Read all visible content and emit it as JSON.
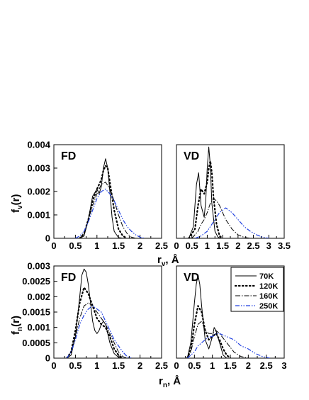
{
  "legend": [
    "70K",
    "120K",
    "160K",
    "250K"
  ],
  "colors": {
    "70K": "#000000",
    "120K": "#000000",
    "160K": "#000000",
    "250K": "#1f3fe0"
  },
  "labels": {
    "ylabel_top_main": "f",
    "ylabel_top_sub": "v",
    "ylabel_top_tail": "(r)",
    "ylabel_bot_main": "f",
    "ylabel_bot_sub": "n",
    "ylabel_bot_tail": "(r)",
    "xlabel_top_main": "r",
    "xlabel_top_sub": "v",
    "xlabel_top_tail": ", Å",
    "xlabel_bot_main": "r",
    "xlabel_bot_sub": "n",
    "xlabel_bot_tail": ", Å"
  },
  "chart_data": [
    {
      "type": "line",
      "title": "FD",
      "xlim": [
        0,
        2.5
      ],
      "ylim": [
        0,
        0.004
      ],
      "xticks": [
        "0",
        "0.5",
        "1",
        "1.5",
        "2",
        "2.5"
      ],
      "yticks": [
        "0",
        "0.001",
        "0.002",
        "0.003",
        "0.004"
      ],
      "series": [
        {
          "name": "70K",
          "x": [
            0.6,
            0.7,
            0.8,
            0.9,
            1.0,
            1.05,
            1.1,
            1.15,
            1.2,
            1.25,
            1.3,
            1.35,
            1.4,
            1.5,
            1.6,
            1.7
          ],
          "y": [
            0,
            0.0001,
            0.0008,
            0.0018,
            0.0021,
            0.0019,
            0.0022,
            0.003,
            0.0034,
            0.003,
            0.002,
            0.0009,
            0.0003,
            3e-05,
            0,
            0
          ]
        },
        {
          "name": "120K",
          "x": [
            0.6,
            0.7,
            0.8,
            0.9,
            1.0,
            1.1,
            1.15,
            1.2,
            1.25,
            1.3,
            1.4,
            1.5,
            1.6,
            1.7
          ],
          "y": [
            0,
            0.0002,
            0.0008,
            0.0016,
            0.0021,
            0.0025,
            0.0029,
            0.0031,
            0.003,
            0.0024,
            0.0012,
            0.0004,
            0.0001,
            0
          ]
        },
        {
          "name": "160K",
          "x": [
            0.6,
            0.7,
            0.8,
            0.9,
            1.0,
            1.1,
            1.2,
            1.3,
            1.4,
            1.5,
            1.6,
            1.7,
            1.8,
            1.9
          ],
          "y": [
            0,
            0.0002,
            0.0008,
            0.0014,
            0.0019,
            0.0023,
            0.0024,
            0.0021,
            0.0016,
            0.001,
            0.0005,
            0.0002,
            5e-05,
            0
          ]
        },
        {
          "name": "250K",
          "x": [
            0.5,
            0.6,
            0.7,
            0.8,
            0.9,
            1.0,
            1.1,
            1.2,
            1.3,
            1.4,
            1.5,
            1.6,
            1.7,
            1.8,
            1.9,
            2.0,
            2.1
          ],
          "y": [
            0,
            0.0001,
            0.0003,
            0.0007,
            0.0012,
            0.0017,
            0.002,
            0.0021,
            0.0019,
            0.0016,
            0.0012,
            0.0008,
            0.0005,
            0.0003,
            0.00015,
            5e-05,
            0
          ]
        }
      ]
    },
    {
      "type": "line",
      "title": "VD",
      "xlim": [
        0,
        3.5
      ],
      "ylim": [
        0,
        0.004
      ],
      "xticks": [
        "0",
        "0.5",
        "1",
        "1.5",
        "2",
        "2.5",
        "3",
        "3.5"
      ],
      "series": [
        {
          "name": "70K",
          "x": [
            0.4,
            0.55,
            0.65,
            0.72,
            0.8,
            0.9,
            0.95,
            1.0,
            1.05,
            1.1,
            1.15,
            1.25,
            1.35,
            1.45
          ],
          "y": [
            0,
            0.0005,
            0.0023,
            0.0028,
            0.0014,
            0.0009,
            0.0016,
            0.003,
            0.0039,
            0.0031,
            0.0015,
            0.0003,
            5e-05,
            0
          ]
        },
        {
          "name": "120K",
          "x": [
            0.4,
            0.6,
            0.7,
            0.8,
            0.9,
            1.0,
            1.05,
            1.1,
            1.15,
            1.2,
            1.3,
            1.4,
            1.5
          ],
          "y": [
            0,
            0.0004,
            0.0014,
            0.0021,
            0.0019,
            0.0024,
            0.003,
            0.0033,
            0.0028,
            0.0018,
            0.0006,
            0.0001,
            0
          ]
        },
        {
          "name": "160K",
          "x": [
            0.5,
            0.7,
            0.8,
            0.9,
            1.0,
            1.1,
            1.2,
            1.3,
            1.4,
            1.5,
            1.6,
            1.8,
            2.0,
            2.2,
            2.4
          ],
          "y": [
            0,
            0.0003,
            0.0006,
            0.0008,
            0.0011,
            0.0015,
            0.0017,
            0.0016,
            0.0014,
            0.0011,
            0.0008,
            0.0004,
            0.00015,
            4e-05,
            0
          ]
        },
        {
          "name": "250K",
          "x": [
            0.6,
            0.8,
            1.0,
            1.2,
            1.4,
            1.5,
            1.6,
            1.7,
            1.8,
            2.0,
            2.2,
            2.4,
            2.6,
            2.8,
            3.0
          ],
          "y": [
            0,
            0.0001,
            0.0003,
            0.0007,
            0.0011,
            0.0012,
            0.0013,
            0.0012,
            0.0011,
            0.0008,
            0.0005,
            0.0003,
            0.00015,
            5e-05,
            0
          ]
        }
      ]
    },
    {
      "type": "line",
      "title": "FD",
      "xlim": [
        0,
        2.5
      ],
      "ylim": [
        0,
        0.003
      ],
      "xticks": [
        "0",
        "0.5",
        "1",
        "1.5",
        "2",
        "2.5"
      ],
      "yticks": [
        "0",
        "0.0005",
        "0.001",
        "0.0015",
        "0.002",
        "0.0025",
        "0.003"
      ],
      "series": [
        {
          "name": "70K",
          "x": [
            0.3,
            0.4,
            0.5,
            0.6,
            0.65,
            0.7,
            0.75,
            0.8,
            0.85,
            0.9,
            0.95,
            1.0,
            1.05,
            1.1,
            1.15,
            1.2,
            1.25,
            1.3,
            1.4,
            1.5,
            1.6
          ],
          "y": [
            0,
            0.0001,
            0.0007,
            0.002,
            0.0027,
            0.0029,
            0.0028,
            0.0024,
            0.0018,
            0.0012,
            0.0009,
            0.0008,
            0.0009,
            0.0011,
            0.0012,
            0.0011,
            0.0008,
            0.0005,
            0.00015,
            3e-05,
            0
          ]
        },
        {
          "name": "120K",
          "x": [
            0.3,
            0.4,
            0.5,
            0.6,
            0.7,
            0.8,
            0.9,
            1.0,
            1.1,
            1.2,
            1.3,
            1.4,
            1.5,
            1.6
          ],
          "y": [
            0,
            0.0002,
            0.0009,
            0.0018,
            0.0023,
            0.0021,
            0.0017,
            0.0013,
            0.0011,
            0.001,
            0.0007,
            0.0003,
            0.0001,
            0
          ]
        },
        {
          "name": "160K",
          "x": [
            0.3,
            0.4,
            0.5,
            0.6,
            0.7,
            0.8,
            0.9,
            1.0,
            1.1,
            1.2,
            1.3,
            1.4,
            1.5,
            1.6,
            1.7
          ],
          "y": [
            0,
            0.0002,
            0.0007,
            0.0013,
            0.0017,
            0.0018,
            0.0017,
            0.0015,
            0.0013,
            0.0011,
            0.0008,
            0.0005,
            0.0002,
            5e-05,
            0
          ]
        },
        {
          "name": "250K",
          "x": [
            0.3,
            0.4,
            0.5,
            0.6,
            0.7,
            0.8,
            0.9,
            1.0,
            1.1,
            1.2,
            1.3,
            1.4,
            1.5,
            1.6,
            1.7,
            1.8
          ],
          "y": [
            0,
            0.0002,
            0.0006,
            0.0011,
            0.0014,
            0.0016,
            0.0017,
            0.0016,
            0.0015,
            0.0012,
            0.0009,
            0.0006,
            0.0004,
            0.0002,
            5e-05,
            0
          ]
        }
      ]
    },
    {
      "type": "line",
      "title": "VD",
      "xlim": [
        0,
        3
      ],
      "ylim": [
        0,
        0.003
      ],
      "xticks": [
        "0",
        "0.5",
        "1",
        "1.5",
        "2",
        "2.5",
        "3"
      ],
      "series": [
        {
          "name": "70K",
          "x": [
            0.3,
            0.4,
            0.5,
            0.55,
            0.6,
            0.65,
            0.7,
            0.8,
            0.9,
            1.0,
            1.05,
            1.1,
            1.2,
            1.3,
            1.4
          ],
          "y": [
            0,
            0.0005,
            0.0018,
            0.0024,
            0.0027,
            0.0024,
            0.0017,
            0.0006,
            0.0003,
            0.0007,
            0.001,
            0.0009,
            0.0005,
            0.0001,
            0
          ]
        },
        {
          "name": "120K",
          "x": [
            0.3,
            0.4,
            0.5,
            0.6,
            0.7,
            0.8,
            0.9,
            1.0,
            1.1,
            1.2,
            1.3,
            1.4,
            1.5
          ],
          "y": [
            0,
            0.0003,
            0.0011,
            0.0017,
            0.0015,
            0.0009,
            0.0006,
            0.0007,
            0.0008,
            0.0006,
            0.0003,
            0.0001,
            0
          ]
        },
        {
          "name": "160K",
          "x": [
            0.3,
            0.4,
            0.5,
            0.6,
            0.7,
            0.8,
            0.9,
            1.0,
            1.1,
            1.2,
            1.4,
            1.6,
            1.8,
            2.0
          ],
          "y": [
            0,
            0.0002,
            0.0007,
            0.0011,
            0.0012,
            0.0009,
            0.0008,
            0.0008,
            0.0009,
            0.0008,
            0.0005,
            0.0002,
            5e-05,
            0
          ]
        },
        {
          "name": "250K",
          "x": [
            0.3,
            0.4,
            0.5,
            0.6,
            0.7,
            0.8,
            0.9,
            1.0,
            1.1,
            1.2,
            1.4,
            1.6,
            1.8,
            2.0,
            2.2,
            2.4,
            2.6
          ],
          "y": [
            0,
            0.0001,
            0.0002,
            0.0004,
            0.0005,
            0.0006,
            0.0007,
            0.0007,
            0.0008,
            0.0008,
            0.0007,
            0.0006,
            0.0004,
            0.0003,
            0.00015,
            5e-05,
            0
          ]
        }
      ]
    }
  ]
}
